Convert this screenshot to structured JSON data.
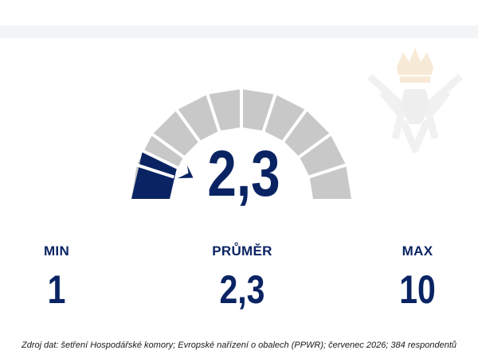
{
  "chart_data": {
    "type": "gauge",
    "value": 2.3,
    "value_label": "2,3",
    "min": 1,
    "max": 10,
    "segments": 10,
    "colors": {
      "filled": "#0a2463",
      "empty": "#c8c8c8",
      "separator": "#ffffff"
    }
  },
  "stats": {
    "min": {
      "label": "MIN",
      "value": "1"
    },
    "avg": {
      "label": "PRŮMĚR",
      "value": "2,3"
    },
    "max": {
      "label": "MAX",
      "value": "10"
    }
  },
  "source": "Zdroj dat: šetření Hospodářské komory; Evropské nařízení o obalech (PPWR); červenec 2026; 384 respondentů",
  "watermark_icon": "lion-crest-icon"
}
